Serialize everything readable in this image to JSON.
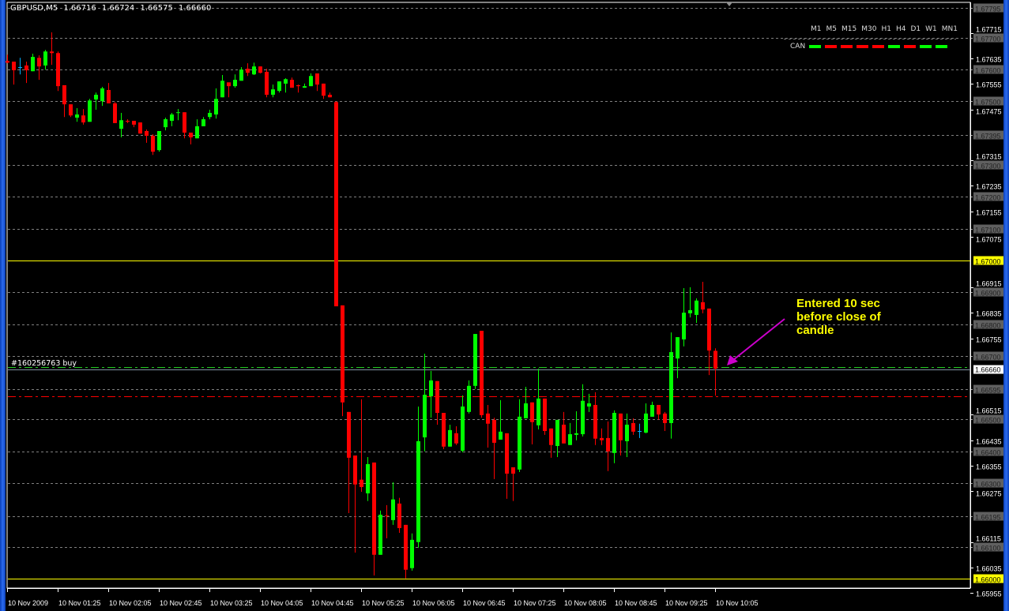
{
  "header": {
    "symbol": "GBPUSD,M5",
    "open": "1.66716",
    "high": "1.66724",
    "low": "1.66575",
    "close": "1.66660"
  },
  "indicator": {
    "timeframes": [
      "M1",
      "M5",
      "M15",
      "M30",
      "H1",
      "H4",
      "D1",
      "W1",
      "MN1"
    ],
    "row_label": "CAN",
    "row_colors": [
      "#00ff00",
      "#ff0000",
      "#ff0000",
      "#ff0000",
      "#ff0000",
      "#00ff00",
      "#ff0000",
      "#00ff00",
      "#00ff00"
    ]
  },
  "order": {
    "label": "#160256763 buy",
    "open_price": 1.6666,
    "stop_loss": 1.66573
  },
  "annotation": {
    "text": "Entered 10 sec before close of candle",
    "color": "#ffff00",
    "arrow_color": "#cc00cc"
  },
  "colors": {
    "bull": "#00ff00",
    "bear": "#ff0000",
    "doji": "#00b0ff",
    "grid": "#808080",
    "background": "#000000"
  },
  "chart_data": {
    "type": "candlestick",
    "timeframe": "M5",
    "ylim": [
      1.6595,
      1.67805
    ],
    "grid": true,
    "price_labels": [
      "1.67715",
      "1.67635",
      "1.67555",
      "1.67475",
      "1.67315",
      "1.67235",
      "1.67155",
      "1.67075",
      "1.66915",
      "1.66835",
      "1.66755",
      "1.66515",
      "1.66435",
      "1.66355",
      "1.66275",
      "1.66115",
      "1.66035",
      "1.65955"
    ],
    "grid_levels": [
      "1.67795",
      "1.67700",
      "1.67600",
      "1.67500",
      "1.67395",
      "1.67300",
      "1.67200",
      "1.67100",
      "1.66900",
      "1.66800",
      "1.66700",
      "1.66595",
      "1.66500",
      "1.66400",
      "1.66300",
      "1.66195",
      "1.66100"
    ],
    "horizontal_lines": [
      {
        "price": "1.67000",
        "color": "#ffff00"
      },
      {
        "price": "1.66000",
        "color": "#ffff00"
      }
    ],
    "bid": "1.66660",
    "time_labels": [
      "10 Nov 2009",
      "10 Nov 01:25",
      "10 Nov 02:05",
      "10 Nov 02:45",
      "10 Nov 03:25",
      "10 Nov 04:05",
      "10 Nov 04:45",
      "10 Nov 05:25",
      "10 Nov 06:05",
      "10 Nov 06:45",
      "10 Nov 07:25",
      "10 Nov 08:05",
      "10 Nov 08:45",
      "10 Nov 09:25",
      "10 Nov 10:05"
    ],
    "ohlc": [
      [
        1.67627,
        1.67647,
        1.6762,
        1.67622
      ],
      [
        1.67625,
        1.67625,
        1.67553,
        1.67598
      ],
      [
        1.67608,
        1.67637,
        1.67585,
        1.67608
      ],
      [
        1.67613,
        1.67625,
        1.67558,
        1.67598
      ],
      [
        1.67595,
        1.6765,
        1.67595,
        1.6764
      ],
      [
        1.67637,
        1.67645,
        1.67568,
        1.6761
      ],
      [
        1.67613,
        1.67662,
        1.676,
        1.67657
      ],
      [
        1.67657,
        1.67717,
        1.67615,
        1.67652
      ],
      [
        1.67652,
        1.67657,
        1.67533,
        1.67548
      ],
      [
        1.67551,
        1.67551,
        1.67451,
        1.67491
      ],
      [
        1.67491,
        1.67491,
        1.67451,
        1.67456
      ],
      [
        1.67449,
        1.67479,
        1.67436,
        1.67459
      ],
      [
        1.67456,
        1.67476,
        1.67427,
        1.67434
      ],
      [
        1.67436,
        1.67508,
        1.67436,
        1.67503
      ],
      [
        1.67506,
        1.67528,
        1.67474,
        1.67521
      ],
      [
        1.67501,
        1.67546,
        1.67486,
        1.67541
      ],
      [
        1.67536,
        1.67558,
        1.67494,
        1.67494
      ],
      [
        1.67494,
        1.67498,
        1.67432,
        1.67432
      ],
      [
        1.67414,
        1.67464,
        1.67387,
        1.67441
      ],
      [
        1.67439,
        1.67444,
        1.67432,
        1.67436
      ],
      [
        1.67439,
        1.67439,
        1.67419,
        1.67427
      ],
      [
        1.67434,
        1.67434,
        1.67399,
        1.67399
      ],
      [
        1.67407,
        1.67412,
        1.6737,
        1.67392
      ],
      [
        1.67392,
        1.67397,
        1.67332,
        1.67342
      ],
      [
        1.67347,
        1.67407,
        1.67342,
        1.67407
      ],
      [
        1.67419,
        1.67449,
        1.67409,
        1.67444
      ],
      [
        1.67439,
        1.67464,
        1.67422,
        1.67459
      ],
      [
        1.67464,
        1.67476,
        1.67441,
        1.67466
      ],
      [
        1.67466,
        1.67466,
        1.67384,
        1.67402
      ],
      [
        1.67402,
        1.67402,
        1.67365,
        1.67387
      ],
      [
        1.67384,
        1.67444,
        1.67384,
        1.67422
      ],
      [
        1.67422,
        1.67451,
        1.67422,
        1.67444
      ],
      [
        1.67451,
        1.67474,
        1.67444,
        1.67464
      ],
      [
        1.67459,
        1.67541,
        1.67446,
        1.67508
      ],
      [
        1.67513,
        1.67583,
        1.67513,
        1.67565
      ],
      [
        1.6756,
        1.6756,
        1.67513,
        1.67548
      ],
      [
        1.67548,
        1.67585,
        1.67543,
        1.67568
      ],
      [
        1.67565,
        1.67608,
        1.67565,
        1.676
      ],
      [
        1.67603,
        1.6762,
        1.6758,
        1.6759
      ],
      [
        1.67585,
        1.67622,
        1.67583,
        1.6761
      ],
      [
        1.6761,
        1.6761,
        1.67588,
        1.6759
      ],
      [
        1.67593,
        1.67603,
        1.67513,
        1.67521
      ],
      [
        1.67521,
        1.67553,
        1.67513,
        1.67538
      ],
      [
        1.67533,
        1.67563,
        1.67528,
        1.67563
      ],
      [
        1.67556,
        1.67573,
        1.67528,
        1.6757
      ],
      [
        1.67568,
        1.67575,
        1.67543,
        1.67543
      ],
      [
        1.67551,
        1.67553,
        1.67528,
        1.67548
      ],
      [
        1.67543,
        1.67556,
        1.67543,
        1.67548
      ],
      [
        1.67548,
        1.67588,
        1.67548,
        1.6758
      ],
      [
        1.67588,
        1.67588,
        1.67533,
        1.67553
      ],
      [
        1.67556,
        1.67556,
        1.67508,
        1.67518
      ],
      [
        1.67521,
        1.67528,
        1.67513,
        1.67513
      ],
      [
        1.67498,
        1.67501,
        1.66856,
        1.66856
      ],
      [
        1.66859,
        1.66859,
        1.66511,
        1.66554
      ],
      [
        1.66524,
        1.66524,
        1.66206,
        1.6638
      ],
      [
        1.66387,
        1.66387,
        1.66082,
        1.66296
      ],
      [
        1.66311,
        1.66564,
        1.66273,
        1.66288
      ],
      [
        1.66268,
        1.66382,
        1.66244,
        1.6636
      ],
      [
        1.66365,
        1.66365,
        1.6601,
        1.66075
      ],
      [
        1.66075,
        1.66214,
        1.66075,
        1.66201
      ],
      [
        1.66199,
        1.66231,
        1.66127,
        1.66198
      ],
      [
        1.66184,
        1.66303,
        1.66169,
        1.66249
      ],
      [
        1.66236,
        1.66254,
        1.66144,
        1.66159
      ],
      [
        1.66169,
        1.66169,
        1.66001,
        1.66028
      ],
      [
        1.66033,
        1.66142,
        1.66025,
        1.66122
      ],
      [
        1.66115,
        1.66541,
        1.66097,
        1.66432
      ],
      [
        1.66444,
        1.66707,
        1.664,
        1.66578
      ],
      [
        1.66573,
        1.66653,
        1.66506,
        1.66623
      ],
      [
        1.66621,
        1.66621,
        1.66484,
        1.66521
      ],
      [
        1.66521,
        1.66521,
        1.66407,
        1.66415
      ],
      [
        1.66415,
        1.66484,
        1.66415,
        1.66467
      ],
      [
        1.66457,
        1.66479,
        1.6642,
        1.66425
      ],
      [
        1.66402,
        1.66576,
        1.66397,
        1.66541
      ],
      [
        1.66524,
        1.66623,
        1.66519,
        1.66606
      ],
      [
        1.66606,
        1.66769,
        1.66596,
        1.66769
      ],
      [
        1.66779,
        1.66779,
        1.66506,
        1.66514
      ],
      [
        1.66519,
        1.66546,
        1.66412,
        1.66487
      ],
      [
        1.66499,
        1.66506,
        1.66313,
        1.66427
      ],
      [
        1.66437,
        1.66561,
        1.66437,
        1.66462
      ],
      [
        1.66457,
        1.66457,
        1.66251,
        1.6633
      ],
      [
        1.6635,
        1.6635,
        1.66244,
        1.6633
      ],
      [
        1.66343,
        1.66564,
        1.66335,
        1.66509
      ],
      [
        1.66504,
        1.66603,
        1.66504,
        1.66551
      ],
      [
        1.66554,
        1.66554,
        1.66422,
        1.66492
      ],
      [
        1.66482,
        1.6666,
        1.66469,
        1.66566
      ],
      [
        1.66566,
        1.66566,
        1.66452,
        1.66464
      ],
      [
        1.66472,
        1.66472,
        1.6638,
        1.6642
      ],
      [
        1.66417,
        1.66499,
        1.66382,
        1.66499
      ],
      [
        1.66484,
        1.66524,
        1.66425,
        1.66425
      ],
      [
        1.6642,
        1.66489,
        1.6642,
        1.66454
      ],
      [
        1.66452,
        1.66526,
        1.66435,
        1.66457
      ],
      [
        1.66454,
        1.66611,
        1.66447,
        1.66559
      ],
      [
        1.66541,
        1.66581,
        1.66524,
        1.66551
      ],
      [
        1.66546,
        1.66586,
        1.6642,
        1.6644
      ],
      [
        1.66442,
        1.66472,
        1.6642,
        1.66435
      ],
      [
        1.66442,
        1.66494,
        1.66338,
        1.664
      ],
      [
        1.66395,
        1.66529,
        1.66363,
        1.66521
      ],
      [
        1.66519,
        1.66519,
        1.66387,
        1.66435
      ],
      [
        1.66432,
        1.66519,
        1.66382,
        1.66484
      ],
      [
        1.66489,
        1.66504,
        1.66452,
        1.66462
      ],
      [
        1.66464,
        1.66487,
        1.66442,
        1.66464
      ],
      [
        1.66459,
        1.66551,
        1.66457,
        1.66519
      ],
      [
        1.66509,
        1.66556,
        1.66509,
        1.66546
      ],
      [
        1.66546,
        1.66546,
        1.66499,
        1.66516
      ],
      [
        1.66519,
        1.66524,
        1.66464,
        1.66489
      ],
      [
        1.66489,
        1.66774,
        1.6644,
        1.66712
      ],
      [
        1.66692,
        1.66759,
        1.6663,
        1.66759
      ],
      [
        1.66752,
        1.66913,
        1.6673,
        1.66836
      ],
      [
        1.66834,
        1.66916,
        1.66821,
        1.66844
      ],
      [
        1.66829,
        1.66881,
        1.66804,
        1.66874
      ],
      [
        1.66869,
        1.66933,
        1.66834,
        1.66846
      ],
      [
        1.66849,
        1.66849,
        1.6664,
        1.66717
      ],
      [
        1.66716,
        1.66724,
        1.66575,
        1.6666
      ]
    ]
  }
}
